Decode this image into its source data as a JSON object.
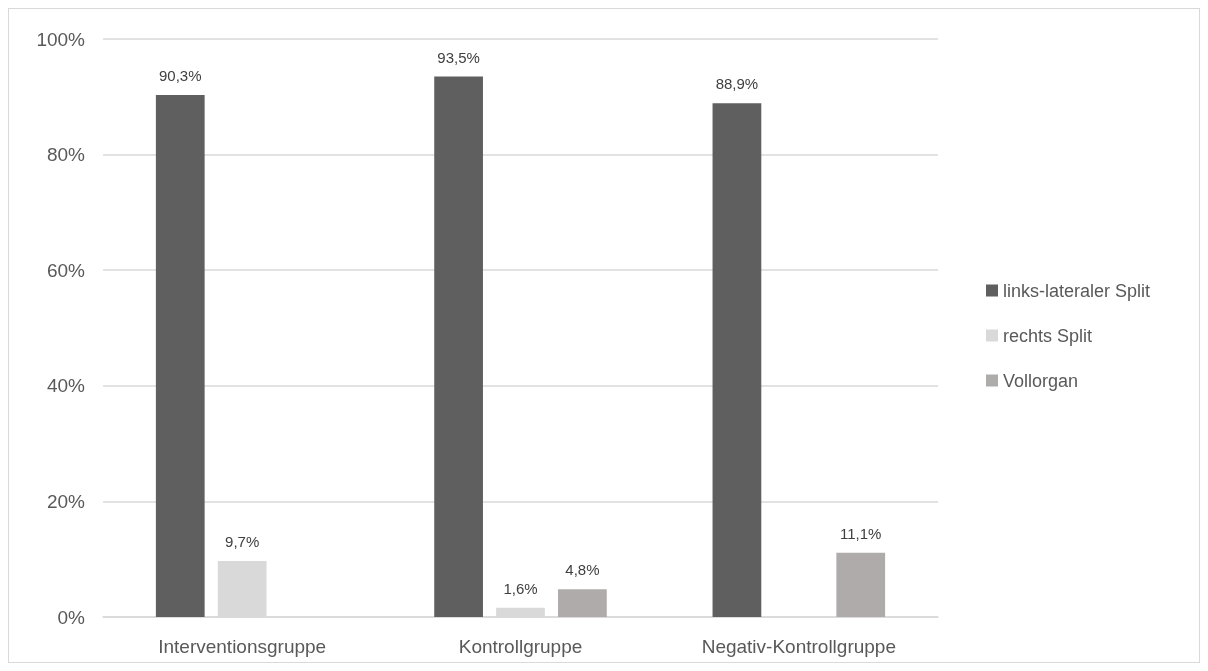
{
  "chart_data": {
    "type": "bar",
    "categories": [
      "Interventionsgruppe",
      "Kontrollgruppe",
      "Negativ-Kontrollgruppe"
    ],
    "series": [
      {
        "name": "links-lateraler Split",
        "color": "#5f5f5f",
        "values": [
          90.3,
          93.5,
          88.9
        ],
        "value_labels": [
          "90,3%",
          "93,5%",
          "88,9%"
        ]
      },
      {
        "name": "rechts Split",
        "color": "#d9d9d9",
        "values": [
          9.7,
          1.6,
          null
        ],
        "value_labels": [
          "9,7%",
          "1,6%",
          null
        ]
      },
      {
        "name": "Vollorgan",
        "color": "#afabab",
        "values": [
          null,
          4.8,
          11.1
        ],
        "value_labels": [
          null,
          "4,8%",
          "11,1%"
        ]
      }
    ],
    "ylim": [
      0,
      100
    ],
    "yticks": [
      {
        "value": 0,
        "label": "0%"
      },
      {
        "value": 20,
        "label": "20%"
      },
      {
        "value": 40,
        "label": "40%"
      },
      {
        "value": 60,
        "label": "60%"
      },
      {
        "value": 80,
        "label": "80%"
      },
      {
        "value": 100,
        "label": "100%"
      }
    ],
    "grid": "y",
    "legend": "right"
  }
}
